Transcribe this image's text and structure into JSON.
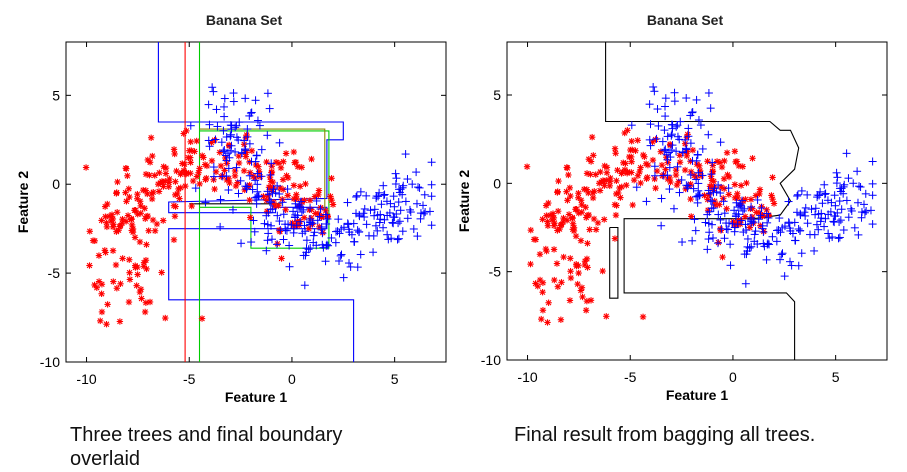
{
  "chart_data": [
    {
      "type": "scatter",
      "title": "Banana Set",
      "xlabel": "Feature 1",
      "ylabel": "Feature 2",
      "xlim": [
        -11,
        7.5
      ],
      "ylim": [
        -10,
        8
      ],
      "xticks": [
        -10,
        -5,
        0,
        5
      ],
      "yticks": [
        5,
        0,
        -5,
        -10
      ],
      "series": [
        {
          "marker": "*",
          "color": "#ff0000"
        },
        {
          "marker": "+",
          "color": "#0000ff"
        }
      ],
      "boundaries": [
        {
          "color": "#0000ff",
          "points": [
            [
              -6.5,
              8
            ],
            [
              -6.5,
              3.5
            ],
            [
              2.5,
              3.5
            ],
            [
              2.5,
              2.5
            ],
            [
              1.7,
              2.5
            ],
            [
              1.7,
              -0.8
            ],
            [
              -6.0,
              -1.0
            ],
            [
              -6.0,
              -1.6
            ],
            [
              -0.8,
              -1.6
            ],
            [
              -0.8,
              -1.3
            ],
            [
              1.7,
              -1.3
            ],
            [
              1.7,
              -2.5
            ],
            [
              -6.0,
              -2.5
            ],
            [
              -6.0,
              -6.5
            ],
            [
              3.0,
              -6.5
            ],
            [
              3.0,
              -10
            ]
          ]
        },
        {
          "color": "#ff0000",
          "points": [
            [
              -5.2,
              8
            ],
            [
              -5.2,
              -10
            ]
          ]
        },
        {
          "color": "#00cc00",
          "points": [
            [
              -4.5,
              8
            ],
            [
              -4.5,
              -10
            ]
          ]
        },
        {
          "color": "#00cc00",
          "points": [
            [
              -4.5,
              3.0
            ],
            [
              1.8,
              3.0
            ],
            [
              1.8,
              -3.6
            ],
            [
              -2.0,
              -3.6
            ],
            [
              -2.0,
              -1.3
            ],
            [
              -4.5,
              -1.3
            ]
          ]
        },
        {
          "color": "#888800",
          "points": [
            [
              -4.5,
              3.1
            ],
            [
              1.6,
              3.1
            ],
            [
              1.6,
              -1.5
            ]
          ]
        },
        {
          "color": "#000000",
          "points": [
            [
              -5.0,
              -1.1
            ],
            [
              -0.5,
              -1.1
            ]
          ]
        }
      ]
    },
    {
      "type": "scatter",
      "title": "Banana Set",
      "xlabel": "Feature 1",
      "ylabel": "Feature 2",
      "xlim": [
        -11,
        7.5
      ],
      "ylim": [
        -10,
        8
      ],
      "xticks": [
        -10,
        -5,
        0,
        5
      ],
      "yticks": [
        5,
        0,
        -5,
        -10
      ],
      "series": [
        {
          "marker": "*",
          "color": "#ff0000"
        },
        {
          "marker": "+",
          "color": "#0000ff"
        }
      ],
      "boundaries": [
        {
          "color": "#000000",
          "points": [
            [
              -6.2,
              8
            ],
            [
              -6.2,
              3.5
            ],
            [
              1.8,
              3.5
            ],
            [
              2.3,
              3.0
            ],
            [
              2.8,
              3.0
            ],
            [
              3.2,
              2.0
            ],
            [
              3.0,
              0.8
            ],
            [
              2.3,
              0.0
            ],
            [
              2.8,
              -1.0
            ],
            [
              2.3,
              -1.8
            ],
            [
              1.0,
              -2.0
            ],
            [
              -5.3,
              -2.0
            ],
            [
              -5.3,
              -6.2
            ],
            [
              2.6,
              -6.2
            ],
            [
              3.0,
              -6.7
            ],
            [
              3.0,
              -10
            ]
          ]
        },
        {
          "color": "#000000",
          "points": [
            [
              -6.0,
              -2.5
            ],
            [
              -5.6,
              -2.5
            ],
            [
              -5.6,
              -6.5
            ],
            [
              -6.0,
              -6.5
            ],
            [
              -6.0,
              -2.5
            ]
          ]
        }
      ]
    }
  ],
  "captions": {
    "left": "Three trees and final boundary overlaid",
    "right": "Final result from bagging all trees."
  }
}
